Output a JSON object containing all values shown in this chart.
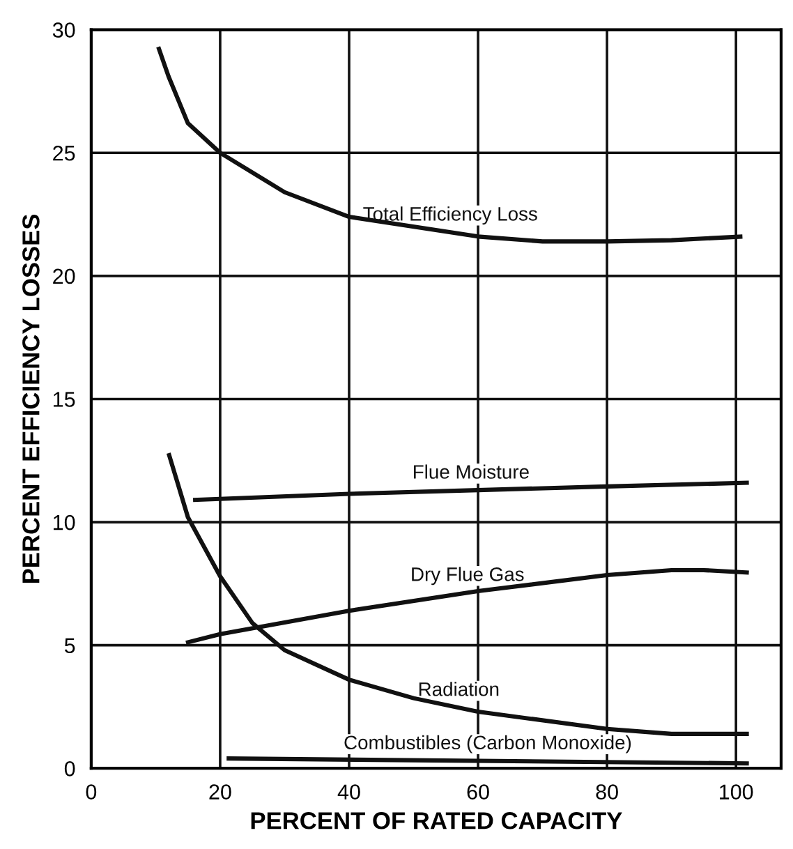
{
  "chart_data": {
    "type": "line",
    "xlabel": "PERCENT OF RATED CAPACITY",
    "ylabel": "PERCENT EFFICIENCY LOSSES",
    "xlim": [
      0,
      107
    ],
    "ylim": [
      0,
      30
    ],
    "xticks": [
      0,
      20,
      40,
      60,
      80,
      100
    ],
    "yticks": [
      0,
      5,
      10,
      15,
      20,
      25,
      30
    ],
    "grid": true,
    "marker": "none",
    "line_style": "solid",
    "series": [
      {
        "name": "Total Efficiency Loss",
        "color": "#111111",
        "x": [
          10.4,
          12,
          15,
          20,
          30,
          40,
          60,
          70,
          80,
          90,
          101
        ],
        "values": [
          29.3,
          28.1,
          26.2,
          25,
          23.4,
          22.4,
          21.6,
          21.4,
          21.4,
          21.45,
          21.6
        ]
      },
      {
        "name": "Flue Moisture",
        "color": "#111111",
        "x": [
          15.8,
          40,
          60,
          80,
          102
        ],
        "values": [
          10.9,
          11.15,
          11.3,
          11.45,
          11.6
        ]
      },
      {
        "name": "Dry Flue Gas",
        "color": "#111111",
        "x": [
          14.7,
          20,
          40,
          60,
          80,
          90,
          95,
          102
        ],
        "values": [
          5.1,
          5.45,
          6.4,
          7.2,
          7.85,
          8.05,
          8.05,
          7.95
        ]
      },
      {
        "name": "Radiation",
        "color": "#111111",
        "x": [
          12,
          15,
          20,
          25,
          30,
          40,
          50,
          60,
          80,
          90,
          102
        ],
        "values": [
          12.8,
          10.2,
          7.8,
          5.9,
          4.8,
          3.6,
          2.85,
          2.3,
          1.6,
          1.4,
          1.4
        ]
      },
      {
        "name": "Combustibles (Carbon Monoxide)",
        "color": "#111111",
        "x": [
          21,
          102
        ],
        "values": [
          0.4,
          0.2
        ]
      }
    ]
  }
}
